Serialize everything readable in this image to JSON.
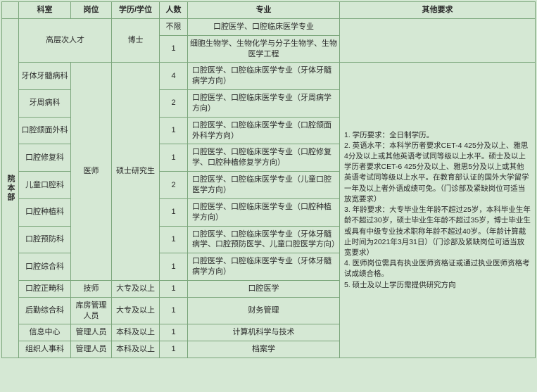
{
  "headers": {
    "section": "",
    "dept": "科室",
    "post": "岗位",
    "edu": "学历/学位",
    "num": "人数",
    "major": "专业",
    "req": "其他要求"
  },
  "section_label": "院本部",
  "top_block": {
    "label": "高层次人才",
    "edu": "博士",
    "rows": [
      {
        "num": "不限",
        "major": "口腔医学、口腔临床医学专业"
      },
      {
        "num": "1",
        "major": "细胞生物学、生物化学与分子生物学、生物医学工程"
      }
    ]
  },
  "doctor_block": {
    "post": "医师",
    "edu": "硕士研究生",
    "rows": [
      {
        "dept": "牙体牙髓病科",
        "num": "4",
        "major": "口腔医学、口腔临床医学专业（牙体牙髓病学方向）"
      },
      {
        "dept": "牙周病科",
        "num": "2",
        "major": "口腔医学、口腔临床医学专业（牙周病学方向）"
      },
      {
        "dept": "口腔颌面外科",
        "num": "1",
        "major": "口腔医学、口腔临床医学专业（口腔颌面外科学方向）"
      },
      {
        "dept": "口腔修复科",
        "num": "1",
        "major": "口腔医学、口腔临床医学专业（口腔修复学、口腔种植修复学方向）"
      },
      {
        "dept": "儿童口腔科",
        "num": "2",
        "major": "口腔医学、口腔临床医学专业（儿童口腔医学方向）"
      },
      {
        "dept": "口腔种植科",
        "num": "1",
        "major": "口腔医学、口腔临床医学专业（口腔种植学方向）"
      },
      {
        "dept": "口腔预防科",
        "num": "1",
        "major": "口腔医学、口腔临床医学专业（牙体牙髓病学、口腔预防医学、儿童口腔医学方向）"
      },
      {
        "dept": "口腔综合科",
        "num": "1",
        "major": "口腔医学、口腔临床医学专业（牙体牙髓病学方向）"
      }
    ]
  },
  "other_rows": [
    {
      "dept": "口腔正畸科",
      "post": "技师",
      "edu": "大专及以上",
      "num": "1",
      "major": "口腔医学"
    },
    {
      "dept": "后勤综合科",
      "post": "库房管理人员",
      "edu": "大专及以上",
      "num": "1",
      "major": "财务管理"
    },
    {
      "dept": "信息中心",
      "post": "管理人员",
      "edu": "本科及以上",
      "num": "1",
      "major": "计算机科学与技术"
    },
    {
      "dept": "组织人事科",
      "post": "管理人员",
      "edu": "本科及以上",
      "num": "1",
      "major": "档案学"
    }
  ],
  "requirements": "1. 学历要求：全日制学历。\n2. 英语水平：本科学历者要求CET-4 425分及以上、雅思4分及以上或其他英语考试同等级以上水平。硕士及以上学历者要求CET-6 425分及以上、雅思5分及以上或其他英语考试同等级以上水平。在教育部认证的国外大学留学一年及以上者外语成绩可免。（门诊部及紧缺岗位可适当放宽要求）\n3. 年龄要求：大专毕业生年龄不超过25岁，本科毕业生年龄不超过30岁，硕士毕业生年龄不超过35岁，博士毕业生或具有中级专业技术职称年龄不超过40岁。（年龄计算截止时间为2021年3月31日）（门诊部及紧缺岗位可适当放宽要求）\n4. 医师岗位需具有执业医师资格证或通过执业医师资格考试成绩合格。\n5. 硕士及以上学历需提供研究方向"
}
